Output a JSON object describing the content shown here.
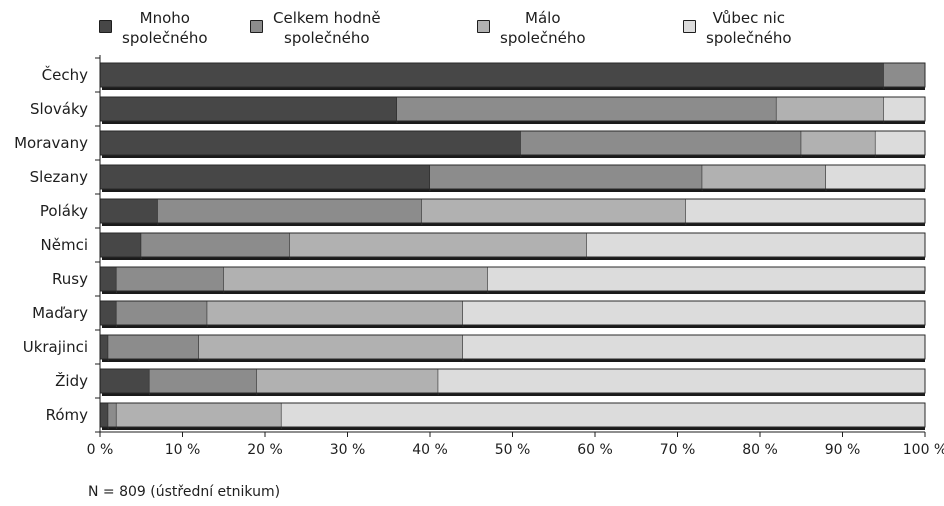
{
  "chart_data": {
    "type": "bar",
    "stacked": true,
    "orientation": "horizontal",
    "categories": [
      "Čechy",
      "Slováky",
      "Moravany",
      "Slezany",
      "Poláky",
      "Němci",
      "Rusy",
      "Maďary",
      "Ukrajinci",
      "Židy",
      "Rómy"
    ],
    "series": [
      {
        "name": "Mnoho\nspolečného",
        "color": "#474747",
        "values": [
          95,
          36,
          51,
          40,
          7,
          5,
          2,
          2,
          1,
          6,
          1
        ]
      },
      {
        "name": "Celkem hodně\nspolečného",
        "color": "#8c8c8c",
        "values": [
          5,
          46,
          34,
          33,
          32,
          18,
          13,
          11,
          11,
          13,
          1
        ]
      },
      {
        "name": "Málo\nspolečného",
        "color": "#b1b1b1",
        "values": [
          0,
          13,
          9,
          15,
          32,
          36,
          32,
          31,
          32,
          22,
          20
        ]
      },
      {
        "name": "Vůbec nic\nspolečného",
        "color": "#dcdcdc",
        "values": [
          0,
          5,
          6,
          12,
          29,
          41,
          53,
          56,
          56,
          59,
          78
        ]
      }
    ],
    "x_ticks": [
      "0 %",
      "10 %",
      "20 %",
      "30 %",
      "40 %",
      "50 %",
      "60 %",
      "70 %",
      "80 %",
      "90 %",
      "100 %"
    ],
    "xlim": [
      0,
      100
    ],
    "legend_position": "top",
    "grid": false,
    "note": "N = 809 (ústřední etnikum)"
  }
}
